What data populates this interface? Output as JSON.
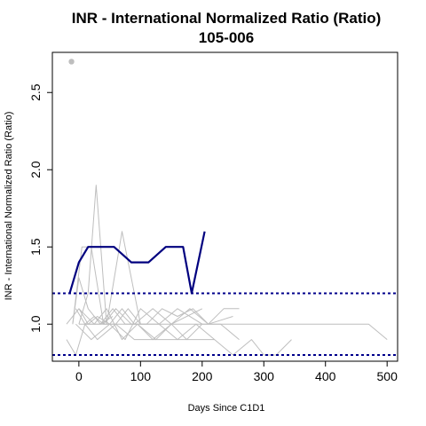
{
  "chart_data": {
    "type": "line",
    "title": "INR - International Normalized Ratio (Ratio)",
    "subtitle": "105-006",
    "xlabel": "Days Since C1D1",
    "ylabel": "INR - International Normalized Ratio (Ratio)",
    "xlim": [
      -43,
      517
    ],
    "ylim": [
      0.76,
      2.76
    ],
    "xticks": [
      0,
      100,
      200,
      300,
      400,
      500
    ],
    "xtick_labels": [
      "0",
      "100",
      "200",
      "300",
      "400",
      "500"
    ],
    "yticks": [
      1.0,
      1.5,
      2.0,
      2.5
    ],
    "ytick_labels": [
      "1.0",
      "1.5",
      "2.0",
      "2.5"
    ],
    "grid": false,
    "reference_lines": [
      {
        "value": 1.2,
        "color": "#00008B",
        "style": "dotted"
      },
      {
        "value": 0.8,
        "color": "#00008B",
        "style": "dotted"
      }
    ],
    "highlight_series": {
      "color": "#00007F",
      "x": [
        -15,
        0,
        15,
        57,
        85,
        113,
        141,
        169,
        183,
        204
      ],
      "y": [
        1.2,
        1.4,
        1.5,
        1.5,
        1.4,
        1.4,
        1.5,
        1.5,
        1.2,
        1.6
      ]
    },
    "background_series_color": "#BEBEBE",
    "background_series": [
      {
        "x": [
          -20,
          0,
          15,
          30,
          50,
          70,
          90,
          120,
          150,
          180,
          210,
          250
        ],
        "y": [
          1.0,
          1.1,
          1.0,
          1.05,
          1.0,
          1.1,
          1.0,
          1.1,
          1.0,
          1.1,
          1.0,
          1.05
        ]
      },
      {
        "x": [
          -10,
          5,
          20,
          40,
          60,
          80,
          100,
          130,
          160,
          200
        ],
        "y": [
          1.0,
          1.5,
          1.5,
          1.0,
          1.0,
          1.1,
          1.0,
          1.0,
          1.1,
          1.0
        ]
      },
      {
        "x": [
          0,
          15,
          28,
          45,
          70,
          100
        ],
        "y": [
          1.0,
          1.2,
          1.9,
          1.0,
          1.6,
          1.0
        ]
      },
      {
        "x": [
          -5,
          10,
          25,
          40,
          60,
          85,
          110,
          135,
          160,
          185,
          210,
          235,
          260
        ],
        "y": [
          1.1,
          1.0,
          1.05,
          1.0,
          1.1,
          1.0,
          1.0,
          1.1,
          1.05,
          1.1,
          1.0,
          1.1,
          1.1
        ]
      },
      {
        "x": [
          -20,
          -5,
          10,
          30,
          60,
          90,
          120,
          150,
          200
        ],
        "y": [
          0.9,
          0.8,
          1.0,
          0.9,
          1.0,
          0.9,
          0.9,
          1.0,
          1.1
        ]
      },
      {
        "x": [
          0,
          20,
          40,
          60,
          80,
          100,
          120,
          140,
          160,
          180,
          200,
          230,
          260,
          290,
          320,
          350,
          380,
          410,
          440,
          470,
          500
        ],
        "y": [
          1.0,
          1.0,
          1.0,
          1.0,
          1.0,
          1.0,
          1.0,
          1.0,
          1.0,
          1.0,
          1.0,
          1.0,
          1.0,
          1.0,
          1.0,
          1.0,
          1.0,
          1.0,
          1.0,
          1.0,
          0.9
        ]
      },
      {
        "x": [
          -5,
          20,
          50,
          75,
          100,
          130,
          160,
          190,
          220
        ],
        "y": [
          1.0,
          0.9,
          1.0,
          0.9,
          1.1,
          1.0,
          0.9,
          1.0,
          0.9
        ]
      },
      {
        "x": [
          0,
          25,
          45,
          70,
          95,
          125,
          150,
          175,
          200,
          230,
          260
        ],
        "y": [
          1.1,
          1.0,
          1.1,
          0.9,
          1.0,
          0.9,
          1.0,
          0.9,
          1.0,
          1.0,
          0.9
        ]
      },
      {
        "x": [
          10,
          35,
          55,
          75,
          95,
          120,
          145,
          170,
          195,
          220,
          250,
          280,
          300,
          320,
          345
        ],
        "y": [
          1.0,
          1.0,
          1.1,
          1.0,
          1.0,
          0.9,
          0.9,
          0.9,
          0.9,
          0.9,
          0.8,
          0.9,
          0.8,
          0.8,
          0.9
        ]
      },
      {
        "x": [
          -10,
          0,
          15,
          35,
          55
        ],
        "y": [
          1.0,
          1.3,
          1.1,
          1.0,
          1.05
        ]
      }
    ],
    "points": [
      {
        "x": -12,
        "y": 2.7,
        "color": "#BEBEBE"
      }
    ]
  }
}
